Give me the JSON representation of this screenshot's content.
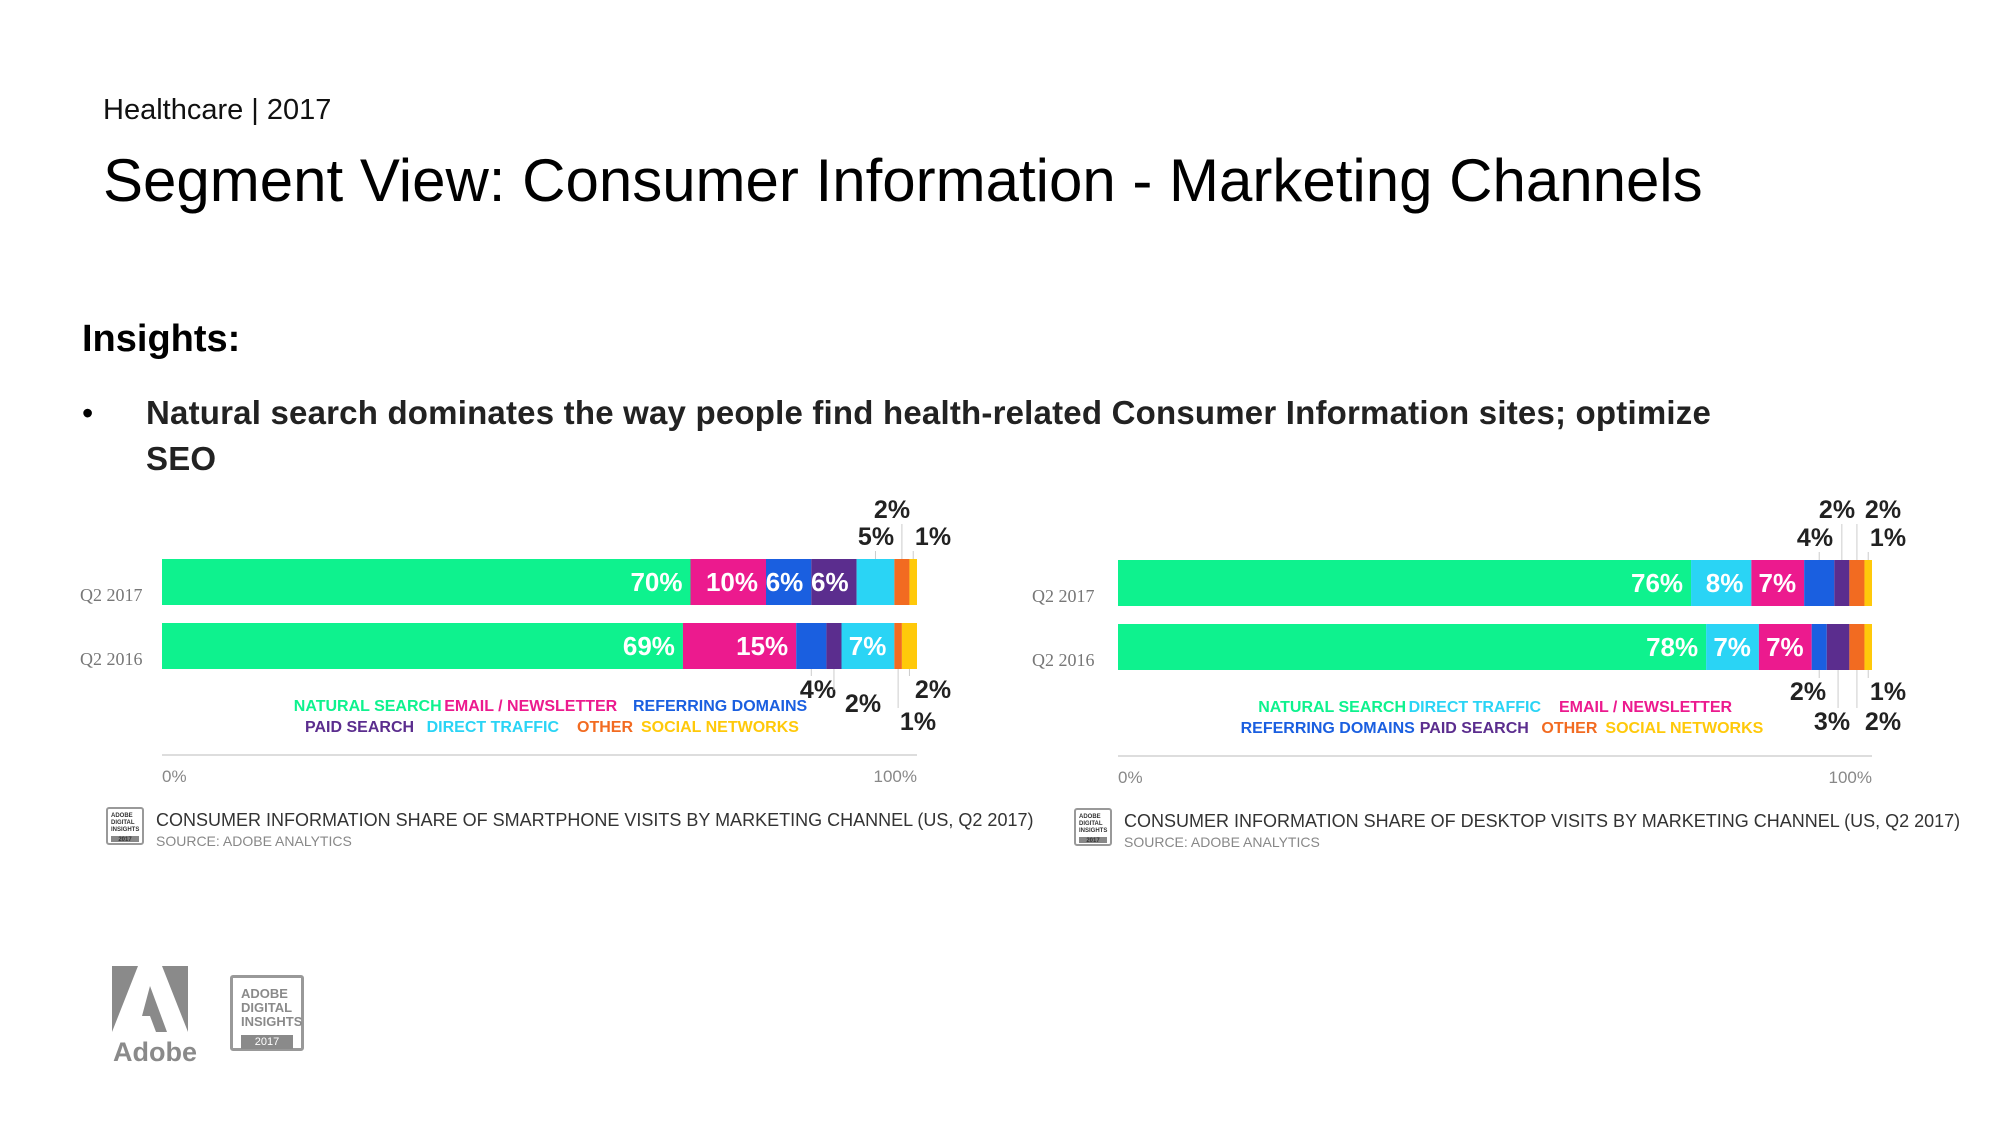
{
  "header": {
    "kicker": "Healthcare | 2017",
    "title": "Segment View: Consumer Information - Marketing Channels"
  },
  "insights": {
    "heading": "Insights:",
    "bullet": "•",
    "items": [
      "Natural search dominates the way people find health-related Consumer Information sites; optimize SEO"
    ]
  },
  "colors": {
    "natural_search": "#0ef28e",
    "email_newsletter": "#ec1a8e",
    "referring_domains": "#1a5fe0",
    "paid_search": "#5b2d8e",
    "direct_traffic": "#2ad4f5",
    "other": "#f26b21",
    "social_networks": "#ffc90a"
  },
  "chart_data": [
    {
      "type": "bar",
      "orientation": "horizontal-stacked",
      "categories": [
        "Q2 2017",
        "Q2 2016"
      ],
      "xlim": [
        0,
        100
      ],
      "x_tick_labels": [
        "0%",
        "100%"
      ],
      "series": [
        {
          "name": "NATURAL SEARCH",
          "key": "natural_search",
          "values": [
            70,
            69
          ]
        },
        {
          "name": "EMAIL / NEWSLETTER",
          "key": "email_newsletter",
          "values": [
            10,
            15
          ]
        },
        {
          "name": "REFERRING DOMAINS",
          "key": "referring_domains",
          "values": [
            6,
            4
          ]
        },
        {
          "name": "PAID SEARCH",
          "key": "paid_search",
          "values": [
            6,
            2
          ]
        },
        {
          "name": "DIRECT TRAFFIC",
          "key": "direct_traffic",
          "values": [
            5,
            7
          ]
        },
        {
          "name": "OTHER",
          "key": "other",
          "values": [
            2,
            1
          ]
        },
        {
          "name": "SOCIAL NETWORKS",
          "key": "social_networks",
          "values": [
            1,
            2
          ]
        }
      ],
      "legend_rows": [
        [
          "NATURAL SEARCH",
          "EMAIL / NEWSLETTER",
          "REFERRING DOMAINS"
        ],
        [
          "PAID SEARCH",
          "DIRECT TRAFFIC",
          "OTHER",
          "SOCIAL NETWORKS"
        ]
      ],
      "caption": "CONSUMER INFORMATION SHARE OF SMARTPHONE VISITS BY MARKETING CHANNEL (US, Q2 2017)",
      "source": "SOURCE: ADOBE ANALYTICS"
    },
    {
      "type": "bar",
      "orientation": "horizontal-stacked",
      "categories": [
        "Q2 2017",
        "Q2 2016"
      ],
      "xlim": [
        0,
        100
      ],
      "x_tick_labels": [
        "0%",
        "100%"
      ],
      "series": [
        {
          "name": "NATURAL SEARCH",
          "key": "natural_search",
          "values": [
            76,
            78
          ]
        },
        {
          "name": "DIRECT TRAFFIC",
          "key": "direct_traffic",
          "values": [
            8,
            7
          ]
        },
        {
          "name": "EMAIL / NEWSLETTER",
          "key": "email_newsletter",
          "values": [
            7,
            7
          ]
        },
        {
          "name": "REFERRING DOMAINS",
          "key": "referring_domains",
          "values": [
            4,
            2
          ]
        },
        {
          "name": "PAID SEARCH",
          "key": "paid_search",
          "values": [
            2,
            3
          ]
        },
        {
          "name": "OTHER",
          "key": "other",
          "values": [
            2,
            2
          ]
        },
        {
          "name": "SOCIAL NETWORKS",
          "key": "social_networks",
          "values": [
            1,
            1
          ]
        }
      ],
      "legend_rows": [
        [
          "NATURAL SEARCH",
          "DIRECT TRAFFIC",
          "EMAIL / NEWSLETTER"
        ],
        [
          "REFERRING DOMAINS",
          "PAID SEARCH",
          "OTHER",
          "SOCIAL NETWORKS"
        ]
      ],
      "caption": "CONSUMER INFORMATION SHARE OF DESKTOP VISITS BY MARKETING CHANNEL (US, Q2 2017)",
      "source": "SOURCE: ADOBE ANALYTICS"
    }
  ],
  "badge": {
    "small_lines": [
      "ADOBE",
      "DIGITAL",
      "INSIGHTS",
      "2017"
    ],
    "big_lines": [
      "ADOBE",
      "DIGITAL",
      "INSIGHTS"
    ],
    "big_year": "2017"
  },
  "logo": {
    "wordmark": "Adobe",
    "icon": "adobe-logo-icon"
  }
}
